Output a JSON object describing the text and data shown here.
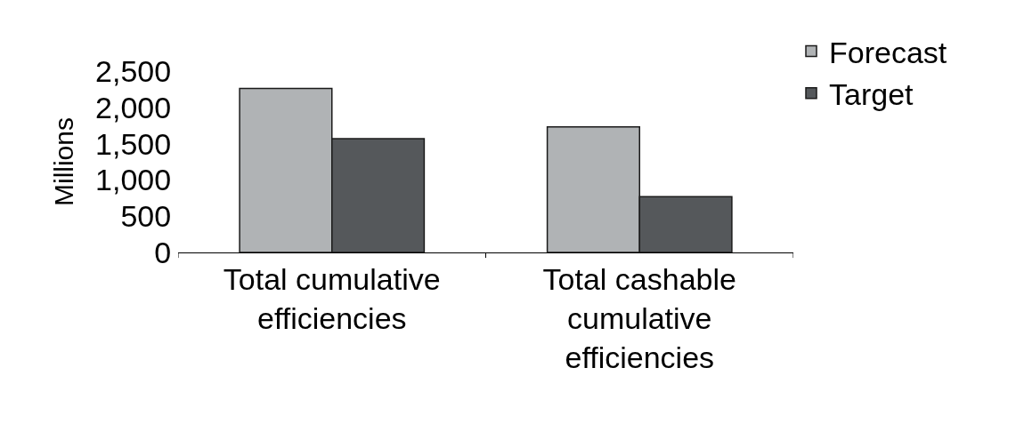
{
  "chart_data": {
    "type": "bar",
    "ylabel": "Millions",
    "categories": [
      "Total cumulative efficiencies",
      "Total cashable cumulative efficiencies"
    ],
    "series": [
      {
        "name": "Forecast",
        "color": "#b0b3b5",
        "values": [
          2260,
          1730
        ]
      },
      {
        "name": "Target",
        "color": "#55585b",
        "values": [
          1570,
          770
        ]
      }
    ],
    "ylim": [
      0,
      2500
    ],
    "yticks": [
      {
        "value": 0,
        "label": "0"
      },
      {
        "value": 500,
        "label": "500"
      },
      {
        "value": 1000,
        "label": "1,000"
      },
      {
        "value": 1500,
        "label": "1,500"
      },
      {
        "value": 2000,
        "label": "2,000"
      },
      {
        "value": 2500,
        "label": "2,500"
      }
    ],
    "legend": "top right"
  }
}
